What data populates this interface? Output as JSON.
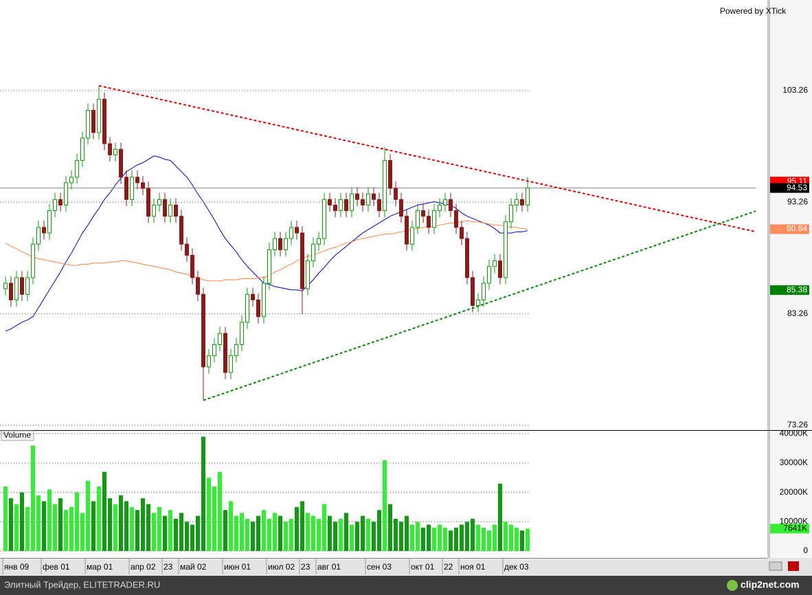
{
  "chart_data": {
    "type": "candlestick",
    "watermark": "Powered by XTick",
    "volume_label": "Volume",
    "categories": [
      "янв 09",
      null,
      null,
      null,
      null,
      null,
      null,
      "фев 01",
      null,
      null,
      null,
      null,
      null,
      null,
      null,
      "мар 01",
      null,
      null,
      null,
      null,
      null,
      null,
      null,
      "апр 02",
      null,
      null,
      null,
      null,
      null,
      "23",
      null,
      null,
      "май 02",
      null,
      null,
      null,
      null,
      null,
      null,
      null,
      "июн 01",
      null,
      null,
      null,
      null,
      null,
      null,
      null,
      "июл 02",
      null,
      null,
      null,
      null,
      null,
      "23",
      null,
      null,
      "авг 01",
      null,
      null,
      null,
      null,
      null,
      null,
      null,
      null,
      "сен 03",
      null,
      null,
      null,
      null,
      null,
      null,
      null,
      "окт 01",
      null,
      null,
      null,
      null,
      null,
      "22",
      null,
      null,
      "ноя 01",
      null,
      null,
      null,
      null,
      null,
      null,
      null,
      "дек 03",
      null,
      null,
      null,
      null
    ],
    "open": [
      85.5,
      86.0,
      84.5,
      86.5,
      85.0,
      86.5,
      89.5,
      91.0,
      90.5,
      92.5,
      93.5,
      93.0,
      95.0,
      95.5,
      97.0,
      99.0,
      101.5,
      99.5,
      102.5,
      98.5,
      97.5,
      98.0,
      95.5,
      93.5,
      95.5,
      95.0,
      94.5,
      92.0,
      93.0,
      93.5,
      92.0,
      93.0,
      92.0,
      89.5,
      88.5,
      86.5,
      85.0,
      78.5,
      79.5,
      80.5,
      81.5,
      78.0,
      79.5,
      80.5,
      82.5,
      85.0,
      84.5,
      83.0,
      86.0,
      89.0,
      90.0,
      89.0,
      90.0,
      91.0,
      90.5,
      85.5,
      88.0,
      89.5,
      90.0,
      93.5,
      93.0,
      92.5,
      93.5,
      92.5,
      94.0,
      93.5,
      93.0,
      94.0,
      93.5,
      92.5,
      97.0,
      94.5,
      93.5,
      92.0,
      89.5,
      91.0,
      92.5,
      92.0,
      91.0,
      92.5,
      93.0,
      93.5,
      92.5,
      91.0,
      90.0,
      86.5,
      84.0,
      84.5,
      86.0,
      87.5,
      88.0,
      86.5,
      91.5,
      93.0,
      93.5,
      93.0
    ],
    "high": [
      86.6,
      86.6,
      87.1,
      87.1,
      87.1,
      90.1,
      91.6,
      91.6,
      93.1,
      94.1,
      94.1,
      95.6,
      96.1,
      97.6,
      99.6,
      102.1,
      102.1,
      103.7,
      103.1,
      99.1,
      98.6,
      98.6,
      96.1,
      96.1,
      96.1,
      95.6,
      95.1,
      93.6,
      94.1,
      94.1,
      93.6,
      93.6,
      92.6,
      90.1,
      89.1,
      87.1,
      85.6,
      80.1,
      81.1,
      82.1,
      82.1,
      80.1,
      81.1,
      83.1,
      85.6,
      85.6,
      85.1,
      86.6,
      89.6,
      90.6,
      90.6,
      90.6,
      91.6,
      91.6,
      91.1,
      88.6,
      90.1,
      90.6,
      94.1,
      94.1,
      93.6,
      94.1,
      94.1,
      94.6,
      94.6,
      94.1,
      94.6,
      94.6,
      94.1,
      98.2,
      97.6,
      95.1,
      94.1,
      92.6,
      91.6,
      93.1,
      93.1,
      92.6,
      93.1,
      93.6,
      94.1,
      94.1,
      93.1,
      91.6,
      90.6,
      87.1,
      85.1,
      86.6,
      88.1,
      88.6,
      88.6,
      92.1,
      93.6,
      94.1,
      94.1,
      95.5
    ],
    "low": [
      84.9,
      83.9,
      83.9,
      84.4,
      84.4,
      85.9,
      88.9,
      89.9,
      89.9,
      91.9,
      92.4,
      92.4,
      94.4,
      94.9,
      96.4,
      98.4,
      98.9,
      98.9,
      97.9,
      96.9,
      96.9,
      94.9,
      92.9,
      92.9,
      94.4,
      93.9,
      91.4,
      91.4,
      92.4,
      91.4,
      91.4,
      91.4,
      88.9,
      87.9,
      85.9,
      84.4,
      75.5,
      77.9,
      78.9,
      79.9,
      77.4,
      77.4,
      78.9,
      79.9,
      81.9,
      83.9,
      82.4,
      82.4,
      85.4,
      88.4,
      88.4,
      88.4,
      89.4,
      89.9,
      83.2,
      84.9,
      87.4,
      88.9,
      89.4,
      92.4,
      91.9,
      91.9,
      91.9,
      91.9,
      92.9,
      92.4,
      92.4,
      92.9,
      91.9,
      91.9,
      93.9,
      92.9,
      91.4,
      88.9,
      88.9,
      90.4,
      91.4,
      90.4,
      90.4,
      91.9,
      92.4,
      91.9,
      90.4,
      89.4,
      85.9,
      83.4,
      83.4,
      83.9,
      85.4,
      86.9,
      85.9,
      85.9,
      90.9,
      92.4,
      92.4,
      92.4
    ],
    "close": [
      86.0,
      84.5,
      86.5,
      85.0,
      86.5,
      89.5,
      91.0,
      90.5,
      92.5,
      93.5,
      93.0,
      95.0,
      95.5,
      97.0,
      99.0,
      101.5,
      99.5,
      102.5,
      98.5,
      97.5,
      98.0,
      95.5,
      93.5,
      95.5,
      95.0,
      94.5,
      92.0,
      93.0,
      93.5,
      92.0,
      93.0,
      92.0,
      89.5,
      88.5,
      86.5,
      85.0,
      78.5,
      79.5,
      80.5,
      81.5,
      78.0,
      79.5,
      80.5,
      82.5,
      85.0,
      84.5,
      83.0,
      86.0,
      89.0,
      90.0,
      89.0,
      90.0,
      91.0,
      90.5,
      85.5,
      88.0,
      89.5,
      90.0,
      93.5,
      93.0,
      92.5,
      93.5,
      92.5,
      94.0,
      93.5,
      93.0,
      94.0,
      93.5,
      92.5,
      97.0,
      94.5,
      93.5,
      92.0,
      89.5,
      91.0,
      92.5,
      92.0,
      91.0,
      92.5,
      93.0,
      93.5,
      92.5,
      91.0,
      90.0,
      86.5,
      84.0,
      84.5,
      86.0,
      87.5,
      88.0,
      86.5,
      91.5,
      93.0,
      93.5,
      93.0,
      94.53
    ],
    "up_color": "#00a000",
    "down_color": "#8b1a1a",
    "lines": [
      {
        "color": "#0000cc",
        "values": [
          81.7,
          81.9,
          82.2,
          82.5,
          82.7,
          83,
          83.8,
          84.6,
          85.4,
          86.2,
          87,
          87.9,
          88.7,
          89.6,
          90.5,
          91.2,
          92,
          92.7,
          93.5,
          94.1,
          94.8,
          95.4,
          96,
          96.3,
          96.6,
          96.8,
          97.1,
          97.4,
          97.3,
          97.1,
          97,
          96.5,
          96,
          95.5,
          94.8,
          94,
          93.3,
          92.5,
          91.7,
          90.8,
          90,
          89.4,
          88.8,
          88.1,
          87.5,
          87,
          86.5,
          86,
          85.9,
          85.7,
          85.6,
          85.5,
          85.4,
          85.4,
          85.3,
          85.8,
          86.3,
          86.9,
          87.4,
          88,
          88.5,
          88.9,
          89.3,
          89.7,
          90.1,
          90.5,
          90.8,
          91.1,
          91.4,
          91.7,
          92,
          92.2,
          92.4,
          92.6,
          92.8,
          93,
          93.1,
          93.2,
          93.3,
          93.2,
          93.1,
          93,
          92.7,
          92.3,
          92,
          91.8,
          91.6,
          91.4,
          91.2,
          90.9,
          90.5,
          90.5,
          90.5,
          90.6,
          90.6,
          90.7
        ]
      },
      {
        "color": "#ff8040",
        "values": [
          89.6,
          89.3,
          89.1,
          88.8,
          88.6,
          88.3,
          88.2,
          88.1,
          88,
          87.9,
          87.8,
          87.7,
          87.6,
          87.6,
          87.7,
          87.7,
          87.8,
          87.8,
          87.8,
          87.9,
          87.9,
          88,
          88,
          87.9,
          87.8,
          87.7,
          87.6,
          87.5,
          87.4,
          87.3,
          87.2,
          87,
          86.9,
          86.8,
          86.6,
          86.5,
          86.3,
          86.2,
          86.2,
          86.2,
          86.3,
          86.3,
          86.3,
          86.4,
          86.4,
          86.4,
          86.5,
          86.5,
          86.7,
          87,
          87.2,
          87.5,
          87.7,
          88,
          88.2,
          88.4,
          88.5,
          88.7,
          88.9,
          89.1,
          89.2,
          89.4,
          89.6,
          89.7,
          89.9,
          90,
          90.1,
          90.2,
          90.3,
          90.4,
          90.4,
          90.5,
          90.6,
          90.7,
          90.8,
          90.9,
          91,
          91,
          91.1,
          91.2,
          91.3,
          91.4,
          91.4,
          91.5,
          91.6,
          91.5,
          91.5,
          91.4,
          91.3,
          91.2,
          91.2,
          91.1,
          91,
          91,
          90.9,
          90.84
        ]
      }
    ],
    "trendlines": [
      {
        "color": "#e00000",
        "points": [
          [
            17,
            103.7
          ],
          [
            136.5,
            90.61
          ]
        ]
      },
      {
        "color": "#008800",
        "points": [
          [
            36,
            75.5
          ],
          [
            136.5,
            92.46
          ]
        ]
      }
    ],
    "ylim": [
      72.83,
      111.38
    ],
    "yticks": [
      103.26,
      93.26,
      83.26,
      73.26
    ],
    "markers": [
      {
        "value": 95.11,
        "color": "#ff0000"
      },
      {
        "value": 94.53,
        "color": "#000000",
        "line": true
      },
      {
        "value": 90.84,
        "color": "#ff8c5a"
      },
      {
        "value": 85.38,
        "color": "#008000"
      }
    ],
    "volume": {
      "values": [
        22000,
        18000,
        16000,
        20000,
        15000,
        36000,
        19000,
        17000,
        21000,
        16000,
        18000,
        14000,
        15000,
        20000,
        13000,
        24000,
        17000,
        22000,
        27000,
        18000,
        16000,
        19000,
        17000,
        15000,
        14000,
        18000,
        16000,
        13000,
        15000,
        12000,
        14000,
        11000,
        13000,
        10000,
        9000,
        12000,
        39000,
        25000,
        22000,
        27000,
        14000,
        17000,
        12000,
        13000,
        11000,
        10000,
        12000,
        14000,
        11000,
        13000,
        12000,
        10000,
        11000,
        15000,
        17000,
        13000,
        12000,
        11000,
        16000,
        12000,
        10000,
        11000,
        13000,
        9000,
        10000,
        12000,
        11000,
        10000,
        14000,
        31000,
        16000,
        11000,
        10000,
        12000,
        9000,
        10000,
        8000,
        9000,
        8000,
        9000,
        8000,
        7000,
        8000,
        9000,
        10000,
        11000,
        9000,
        8000,
        7000,
        9000,
        23000,
        10000,
        9000,
        8000,
        7000,
        7641
      ],
      "up_color": "#33ee33",
      "down_color": "#129a12",
      "ylim": [
        0,
        41000
      ],
      "yticks": [
        {
          "value": 40000,
          "label": "40000K"
        },
        {
          "value": 30000,
          "label": "30000K"
        },
        {
          "value": 20000,
          "label": "20000K"
        },
        {
          "value": 10000,
          "label": "10000K"
        },
        0
      ],
      "marker": {
        "value": 7641,
        "label": "7641K",
        "color": "#33ee33"
      }
    }
  },
  "footer": {
    "text": "Элитный Трейдер, ELITETRADER.RU",
    "logo": "clip2net.com"
  }
}
